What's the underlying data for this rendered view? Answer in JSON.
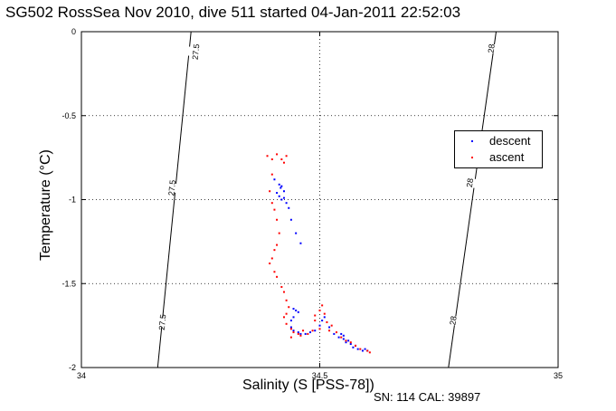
{
  "chart_data": {
    "type": "scatter",
    "title": "SG502 RossSea Nov 2010, dive 511 started 04-Jan-2011 22:52:03",
    "xlabel": "Salinity (S [PSS-78])",
    "ylabel": "Temperature (°C)",
    "xlim": [
      34,
      35
    ],
    "ylim": [
      -2,
      0
    ],
    "xticks": [
      "34",
      "34.5",
      "35"
    ],
    "yticks": [
      "0",
      "-0.5",
      "-1",
      "-1.5",
      "-2"
    ],
    "grid": true,
    "legend_position": "upper-right",
    "density_contours": [
      {
        "label": "27.5",
        "points": [
          [
            34.23,
            0
          ],
          [
            34.16,
            -2
          ]
        ],
        "label_positions": [
          [
            34.24,
            -0.12
          ],
          [
            34.19,
            -0.93
          ],
          [
            34.17,
            -1.73
          ]
        ]
      },
      {
        "label": "28",
        "points": [
          [
            34.87,
            0
          ],
          [
            34.77,
            -2
          ]
        ],
        "label_positions": [
          [
            34.86,
            -0.1
          ],
          [
            34.815,
            -0.9
          ],
          [
            34.78,
            -1.72
          ]
        ]
      }
    ],
    "series": [
      {
        "name": "descent",
        "color": "#0000ff",
        "points": [
          [
            34.415,
            -0.91
          ],
          [
            34.42,
            -0.92
          ],
          [
            34.41,
            -0.96
          ],
          [
            34.415,
            -0.98
          ],
          [
            34.42,
            -1.0
          ],
          [
            34.43,
            -1.02
          ],
          [
            34.425,
            -0.95
          ],
          [
            34.435,
            -1.05
          ],
          [
            34.44,
            -1.12
          ],
          [
            34.45,
            -1.2
          ],
          [
            34.46,
            -1.26
          ],
          [
            34.405,
            -0.88
          ],
          [
            34.418,
            -0.93
          ],
          [
            34.425,
            -0.99
          ],
          [
            34.445,
            -1.65
          ],
          [
            34.45,
            -1.66
          ],
          [
            34.455,
            -1.67
          ],
          [
            34.445,
            -1.7
          ],
          [
            34.44,
            -1.72
          ],
          [
            34.44,
            -1.76
          ],
          [
            34.445,
            -1.78
          ],
          [
            34.455,
            -1.79
          ],
          [
            34.46,
            -1.8
          ],
          [
            34.47,
            -1.8
          ],
          [
            34.48,
            -1.79
          ],
          [
            34.49,
            -1.78
          ],
          [
            34.5,
            -1.75
          ],
          [
            34.505,
            -1.72
          ],
          [
            34.51,
            -1.7
          ],
          [
            34.52,
            -1.76
          ],
          [
            34.53,
            -1.8
          ],
          [
            34.54,
            -1.82
          ],
          [
            34.545,
            -1.8
          ],
          [
            34.55,
            -1.83
          ],
          [
            34.555,
            -1.85
          ],
          [
            34.56,
            -1.84
          ],
          [
            34.565,
            -1.86
          ],
          [
            34.57,
            -1.88
          ],
          [
            34.58,
            -1.89
          ],
          [
            34.59,
            -1.9
          ],
          [
            34.6,
            -1.9
          ],
          [
            34.595,
            -1.89
          ],
          [
            34.575,
            -1.87
          ],
          [
            34.55,
            -1.81
          ]
        ]
      },
      {
        "name": "ascent",
        "color": "#ff0000",
        "points": [
          [
            34.39,
            -0.74
          ],
          [
            34.4,
            -0.76
          ],
          [
            34.41,
            -0.73
          ],
          [
            34.42,
            -0.76
          ],
          [
            34.425,
            -0.78
          ],
          [
            34.43,
            -0.74
          ],
          [
            34.4,
            -0.85
          ],
          [
            34.395,
            -0.95
          ],
          [
            34.4,
            -1.02
          ],
          [
            34.405,
            -1.06
          ],
          [
            34.41,
            -1.12
          ],
          [
            34.415,
            -1.2
          ],
          [
            34.41,
            -1.27
          ],
          [
            34.405,
            -1.3
          ],
          [
            34.4,
            -1.35
          ],
          [
            34.395,
            -1.38
          ],
          [
            34.405,
            -1.43
          ],
          [
            34.41,
            -1.46
          ],
          [
            34.42,
            -1.52
          ],
          [
            34.425,
            -1.55
          ],
          [
            34.43,
            -1.6
          ],
          [
            34.435,
            -1.64
          ],
          [
            34.43,
            -1.68
          ],
          [
            34.425,
            -1.7
          ],
          [
            34.43,
            -1.74
          ],
          [
            34.44,
            -1.77
          ],
          [
            34.445,
            -1.79
          ],
          [
            34.455,
            -1.8
          ],
          [
            34.465,
            -1.78
          ],
          [
            34.475,
            -1.8
          ],
          [
            34.485,
            -1.78
          ],
          [
            34.49,
            -1.69
          ],
          [
            34.5,
            -1.66
          ],
          [
            34.505,
            -1.63
          ],
          [
            34.51,
            -1.68
          ],
          [
            34.515,
            -1.73
          ],
          [
            34.525,
            -1.75
          ],
          [
            34.535,
            -1.79
          ],
          [
            34.545,
            -1.82
          ],
          [
            34.555,
            -1.84
          ],
          [
            34.565,
            -1.85
          ],
          [
            34.575,
            -1.87
          ],
          [
            34.585,
            -1.89
          ],
          [
            34.6,
            -1.9
          ],
          [
            34.605,
            -1.91
          ],
          [
            34.44,
            -1.82
          ],
          [
            34.46,
            -1.81
          ],
          [
            34.5,
            -1.77
          ],
          [
            34.52,
            -1.78
          ],
          [
            34.49,
            -1.72
          ]
        ]
      }
    ]
  },
  "footer": {
    "sn_cal": "SN: 114  CAL: 39897"
  }
}
